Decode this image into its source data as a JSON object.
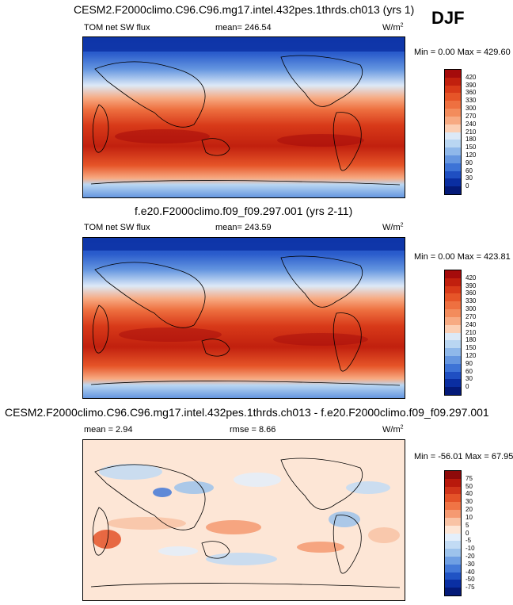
{
  "season": "DJF",
  "units_base": "W/m",
  "units_sup": "2",
  "panels": [
    {
      "title": "CESM2.F2000climo.C96.C96.mg17.intel.432pes.1thrds.ch013 (yrs 1)",
      "variable": "TOM net SW flux",
      "stat1_text": "mean= 246.54",
      "stat2_text": "",
      "minmax_text": "Min =   0.00 Max = 429.60",
      "colorbar": {
        "ticks": [
          "420",
          "390",
          "360",
          "330",
          "300",
          "270",
          "240",
          "210",
          "180",
          "150",
          "120",
          "90",
          "60",
          "30",
          "0"
        ],
        "colors": [
          "#a50b0b",
          "#c1200e",
          "#d83a19",
          "#e65528",
          "#ee7040",
          "#f38c5c",
          "#f7aa82",
          "#fbcfb4",
          "#dce9f7",
          "#b9d6f2",
          "#8fb8ea",
          "#6596e0",
          "#3d73d6",
          "#1f4fc2",
          "#0a2ea1",
          "#041a78"
        ]
      }
    },
    {
      "title": "f.e20.F2000climo.f09_f09.297.001 (yrs 2-11)",
      "variable": "TOM net SW flux",
      "stat1_text": "mean= 243.59",
      "stat2_text": "",
      "minmax_text": "Min =   0.00 Max = 423.81",
      "colorbar": {
        "ticks": [
          "420",
          "390",
          "360",
          "330",
          "300",
          "270",
          "240",
          "210",
          "180",
          "150",
          "120",
          "90",
          "60",
          "30",
          "0"
        ],
        "colors": [
          "#a50b0b",
          "#c1200e",
          "#d83a19",
          "#e65528",
          "#ee7040",
          "#f38c5c",
          "#f7aa82",
          "#fbcfb4",
          "#dce9f7",
          "#b9d6f2",
          "#8fb8ea",
          "#6596e0",
          "#3d73d6",
          "#1f4fc2",
          "#0a2ea1",
          "#041a78"
        ]
      }
    },
    {
      "title": "CESM2.F2000climo.C96.C96.mg17.intel.432pes.1thrds.ch013 - f.e20.F2000climo.f09_f09.297.001",
      "variable": "",
      "stat1_text": "mean =   2.94",
      "stat2_text": "rmse =   8.66",
      "minmax_text": "Min = -56.01 Max =  67.95",
      "colorbar": {
        "ticks": [
          "75",
          "50",
          "40",
          "30",
          "20",
          "10",
          "5",
          "0",
          "-5",
          "-10",
          "-20",
          "-30",
          "-40",
          "-50",
          "-75"
        ],
        "colors": [
          "#8e0a0a",
          "#b8190c",
          "#d0341a",
          "#e45329",
          "#f07445",
          "#f59a72",
          "#f9c3a5",
          "#fde6d6",
          "#e4effb",
          "#c2dbf4",
          "#9dc3ec",
          "#6f9fe3",
          "#4479d8",
          "#2053c4",
          "#0a2fa3",
          "#041a78"
        ]
      }
    }
  ]
}
